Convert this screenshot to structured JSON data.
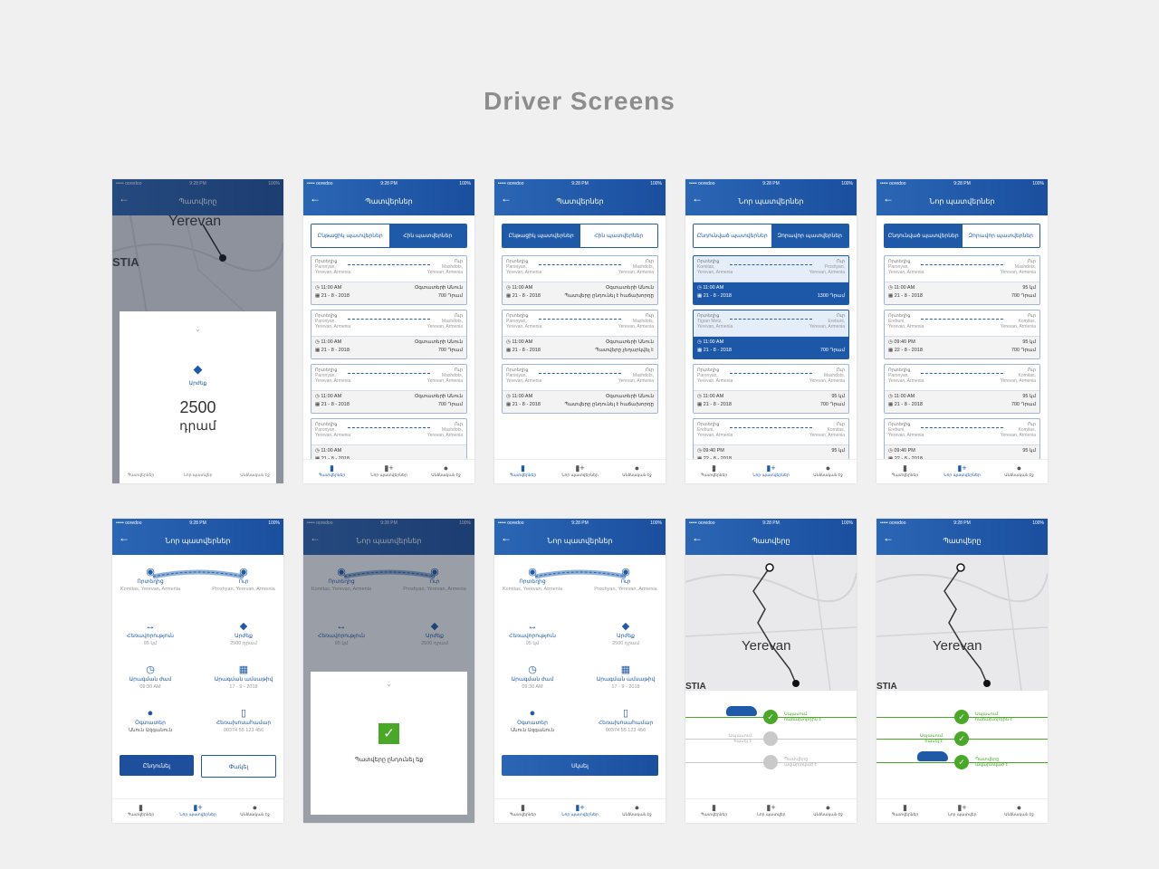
{
  "page_title": "Driver Screens",
  "status": {
    "carrier": "••••• ooredoo",
    "time": "9:28 PM",
    "battery": "100%"
  },
  "colors": {
    "primary": "#1f5aa8",
    "accent_green": "#4aa828",
    "alert_red": "#cc2233",
    "background": "#f0f0f0"
  },
  "tabbar": {
    "orders": "Պատվերներ",
    "new_orders": "Նոր պատվերներ",
    "profile": "Անձնական էջ"
  },
  "s1": {
    "title": "Պատվերը",
    "city": "Yerevan",
    "district": "STIA",
    "label": "Արժեք",
    "value": "2500",
    "unit": "դրամ",
    "tab_orders": "Պատվերներ",
    "tab_new": "Նոր պատվեր",
    "tab_profile": "Անձնական էջ"
  },
  "s2": {
    "title": "Պատվերներ",
    "seg_a": "Ընթացիկ պատվերներ",
    "seg_b": "Հին պատվերներ",
    "from": "Որտեղից",
    "to": "Ուր",
    "time": "11:00 AM",
    "date": "21 - 8 - 2018",
    "name": "Օգտատերի Անուն",
    "price": "700 Դրամ",
    "from_addr1": "Paronyan,",
    "from_addr2": "Yerevan, Armenia",
    "to_addr1": "Mashdots,",
    "to_addr2": "Yerevan, Armenia"
  },
  "s3": {
    "title": "Պատվերներ",
    "seg_a": "Ընթացիկ պատվերներ",
    "seg_b": "Հին պատվերներ",
    "status1": "Պատվերը ընդունել է հաճախորդը",
    "status2": "Պատվերը չեղարկվել է",
    "status3": "Պատվերը ընդունել է հաճախորդը"
  },
  "s4": {
    "title": "Նոր պատվերներ",
    "seg_a": "Ընդունված պատվերներ",
    "seg_b": "Զորավոր պատվերներ",
    "c1_from1": "Komitas,",
    "c1_to1": "Proshyan,",
    "c1_price": "1300 Դրամ",
    "c2_from1": "Tigran Metz,",
    "c2_to1": "Erebuni,",
    "c2_price": "700 Դրամ",
    "c3_from1": "Paronyan,",
    "c3_to1": "Mashdots,",
    "c3_dist": "95 կմ",
    "c3_price": "700 Դրամ",
    "c4_from1": "Erebuni,",
    "c4_to1": "Komitas,",
    "c4_time": "09:40 PM",
    "c4_dist": "95 կմ",
    "c4_date": "22 - 8 - 2018"
  },
  "s5": {
    "title": "Նոր պատվերներ",
    "seg_a": "Ընդունված պատվերներ",
    "seg_b": "Զորավոր պատվերներ",
    "dist": "95 կմ",
    "price": "700 Դրամ",
    "time2": "09:40 PM",
    "date2": "22 - 8 - 2018"
  },
  "detail": {
    "title": "Նոր պատվերներ",
    "from": "Որտեղից",
    "from_v": "Komitas, Yerevan, Armenia",
    "to": "Ուր",
    "to_v": "Proshyan, Yerevan, Armenia",
    "dist": "Հեռավորություն",
    "dist_v": "95 կմ",
    "price": "Արժեք",
    "price_v": "2500 դրամ",
    "dep_time": "Արագման ժամ",
    "dep_time_v": "09:30 AM",
    "dep_date": "Արագման ամսաթիվ",
    "dep_date_v": "17 - 9 - 2018",
    "user": "Օգտատեր",
    "user_v": "Անուն Ազգանուն",
    "phone": "Հեռախոսահամար",
    "phone_v": "00374 55 123 456",
    "accept": "Ընդունել",
    "close": "Փակել",
    "start": "Սկսել",
    "accepted_msg": "Պատվերը ընդունել եք"
  },
  "track": {
    "title": "Պատվերը",
    "city": "Yerevan",
    "district": "STIA",
    "step1": "Սպասում\nհաճախորդին է",
    "step2": "Սպասում\nհասել է",
    "step3": "Պատվերը\nավարտված է"
  }
}
